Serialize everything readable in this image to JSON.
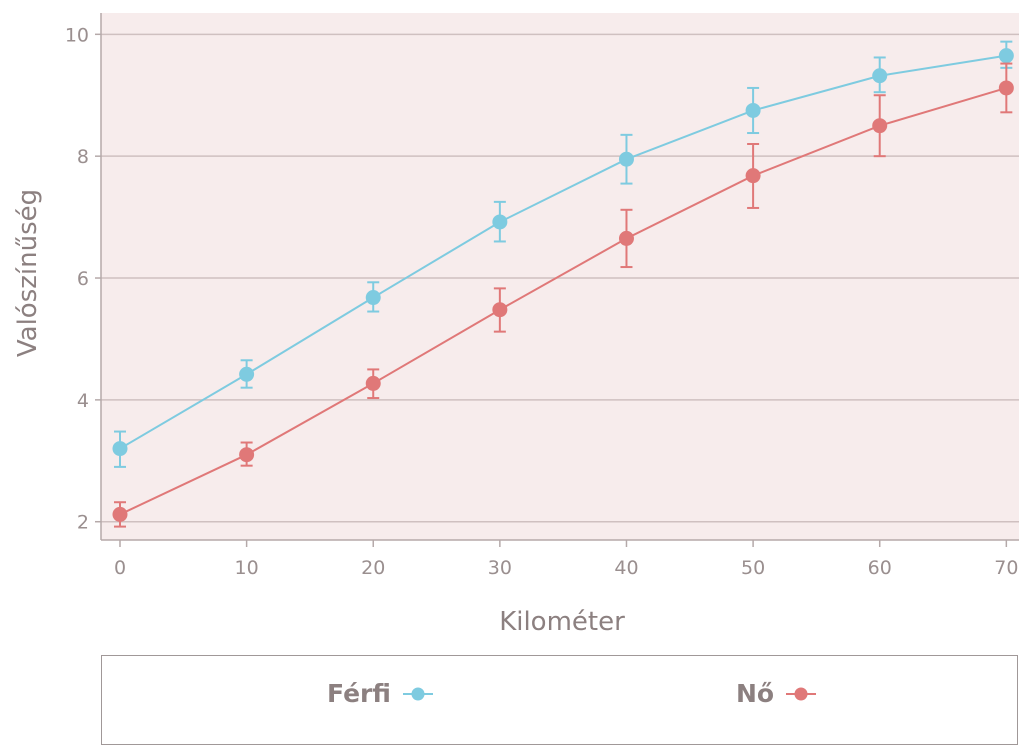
{
  "chart_data": {
    "type": "line",
    "xlabel": "Kilométer",
    "ylabel": "Valószínűség",
    "x": [
      0,
      10,
      20,
      30,
      40,
      50,
      60,
      70
    ],
    "xlim": [
      -1.5,
      71
    ],
    "ylim": [
      1.7,
      10.35
    ],
    "xticks": [
      0,
      10,
      20,
      30,
      40,
      50,
      60,
      70
    ],
    "yticks": [
      2,
      4,
      6,
      8,
      10
    ],
    "grid": "horizontal",
    "legend_position": "bottom",
    "background": "#f7ecec",
    "series": [
      {
        "name": "Férfi",
        "color": "#7ecbe0",
        "values": [
          3.2,
          4.42,
          5.68,
          6.92,
          7.95,
          8.75,
          9.32,
          9.65
        ],
        "err_low": [
          2.9,
          4.2,
          5.45,
          6.6,
          7.55,
          8.38,
          9.05,
          9.45
        ],
        "err_high": [
          3.48,
          4.65,
          5.93,
          7.25,
          8.35,
          9.12,
          9.62,
          9.88
        ]
      },
      {
        "name": "Nő",
        "color": "#e07878",
        "values": [
          2.12,
          3.1,
          4.27,
          5.48,
          6.65,
          7.68,
          8.5,
          9.12
        ],
        "err_low": [
          1.92,
          2.92,
          4.03,
          5.12,
          6.18,
          7.15,
          8.0,
          8.72
        ],
        "err_high": [
          2.32,
          3.3,
          4.5,
          5.83,
          7.12,
          8.2,
          9.0,
          9.52
        ]
      }
    ]
  }
}
